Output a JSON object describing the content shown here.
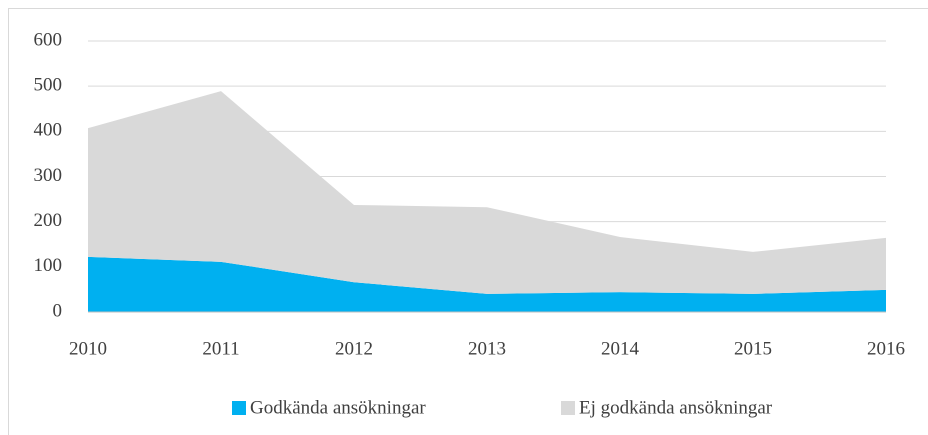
{
  "chart_data": {
    "type": "stacked_area",
    "categories": [
      "2010",
      "2011",
      "2012",
      "2013",
      "2014",
      "2015",
      "2016"
    ],
    "series": [
      {
        "name": "Godkända ansökningar",
        "color": "#00b0f0",
        "values": [
          122,
          111,
          66,
          40,
          44,
          40,
          49
        ]
      },
      {
        "name": "Ej godkända ansökningar",
        "color": "#d9d9d9",
        "values": [
          285,
          378,
          171,
          192,
          122,
          93,
          115
        ]
      }
    ],
    "ylim": [
      0,
      600
    ],
    "yticks": [
      0,
      100,
      200,
      300,
      400,
      500,
      600
    ],
    "grid": true,
    "legend": "bottom"
  }
}
